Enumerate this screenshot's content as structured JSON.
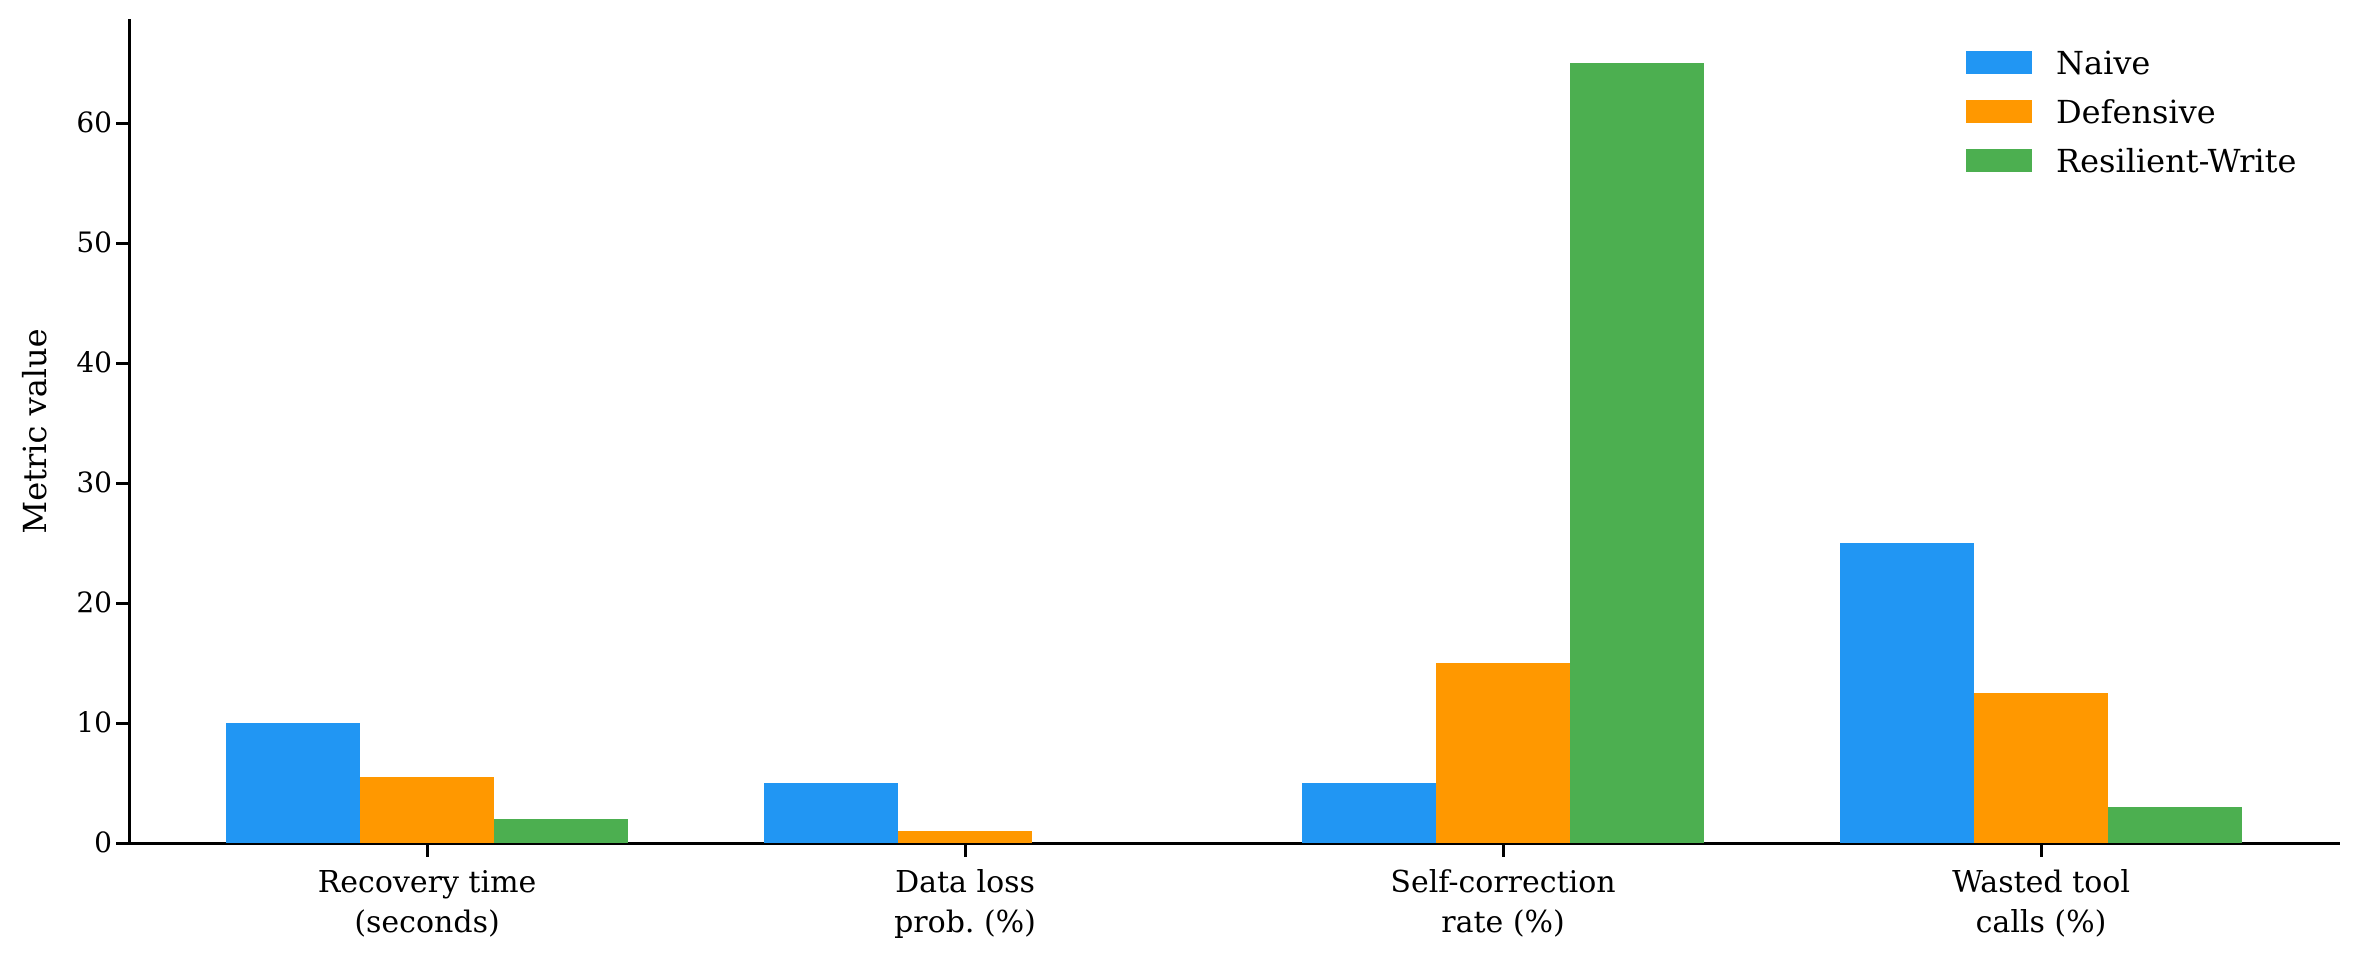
{
  "chart_data": {
    "type": "bar",
    "title": "",
    "xlabel": "",
    "ylabel": "Metric value",
    "categories": [
      "Recovery time\n(seconds)",
      "Data loss\nprob. (%)",
      "Self-correction\nrate (%)",
      "Wasted tool\ncalls (%)"
    ],
    "series": [
      {
        "name": "Naive",
        "color": "#2196F3",
        "values": [
          10,
          5,
          5,
          25
        ]
      },
      {
        "name": "Defensive",
        "color": "#FF9800",
        "values": [
          5.5,
          1,
          15,
          12.5
        ]
      },
      {
        "name": "Resilient-Write",
        "color": "#4CAF50",
        "values": [
          2,
          0,
          65,
          3
        ]
      }
    ],
    "yticks": [
      0,
      10,
      20,
      30,
      40,
      50,
      60
    ],
    "ylim": [
      0,
      68.7
    ],
    "grid": false,
    "legend_position": "upper right",
    "axis_color": "#000000",
    "background_color": "#ffffff"
  }
}
